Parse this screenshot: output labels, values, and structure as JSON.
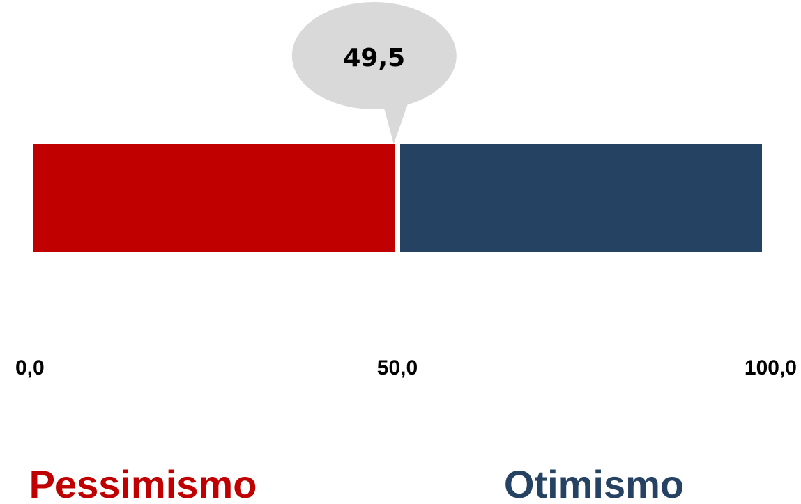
{
  "chart_data": {
    "type": "gauge",
    "xlim": [
      0,
      100
    ],
    "xticks": [
      {
        "value": 0,
        "label": "0,0"
      },
      {
        "value": 50,
        "label": "50,0"
      },
      {
        "value": 100,
        "label": "100,0"
      }
    ],
    "value": 49.5,
    "value_label": "49,5",
    "series": [
      {
        "name": "Pessimismo",
        "color": "#c00000",
        "values": [
          50
        ]
      },
      {
        "name": "Otimismo",
        "color": "#264263",
        "values": [
          50
        ]
      }
    ]
  }
}
